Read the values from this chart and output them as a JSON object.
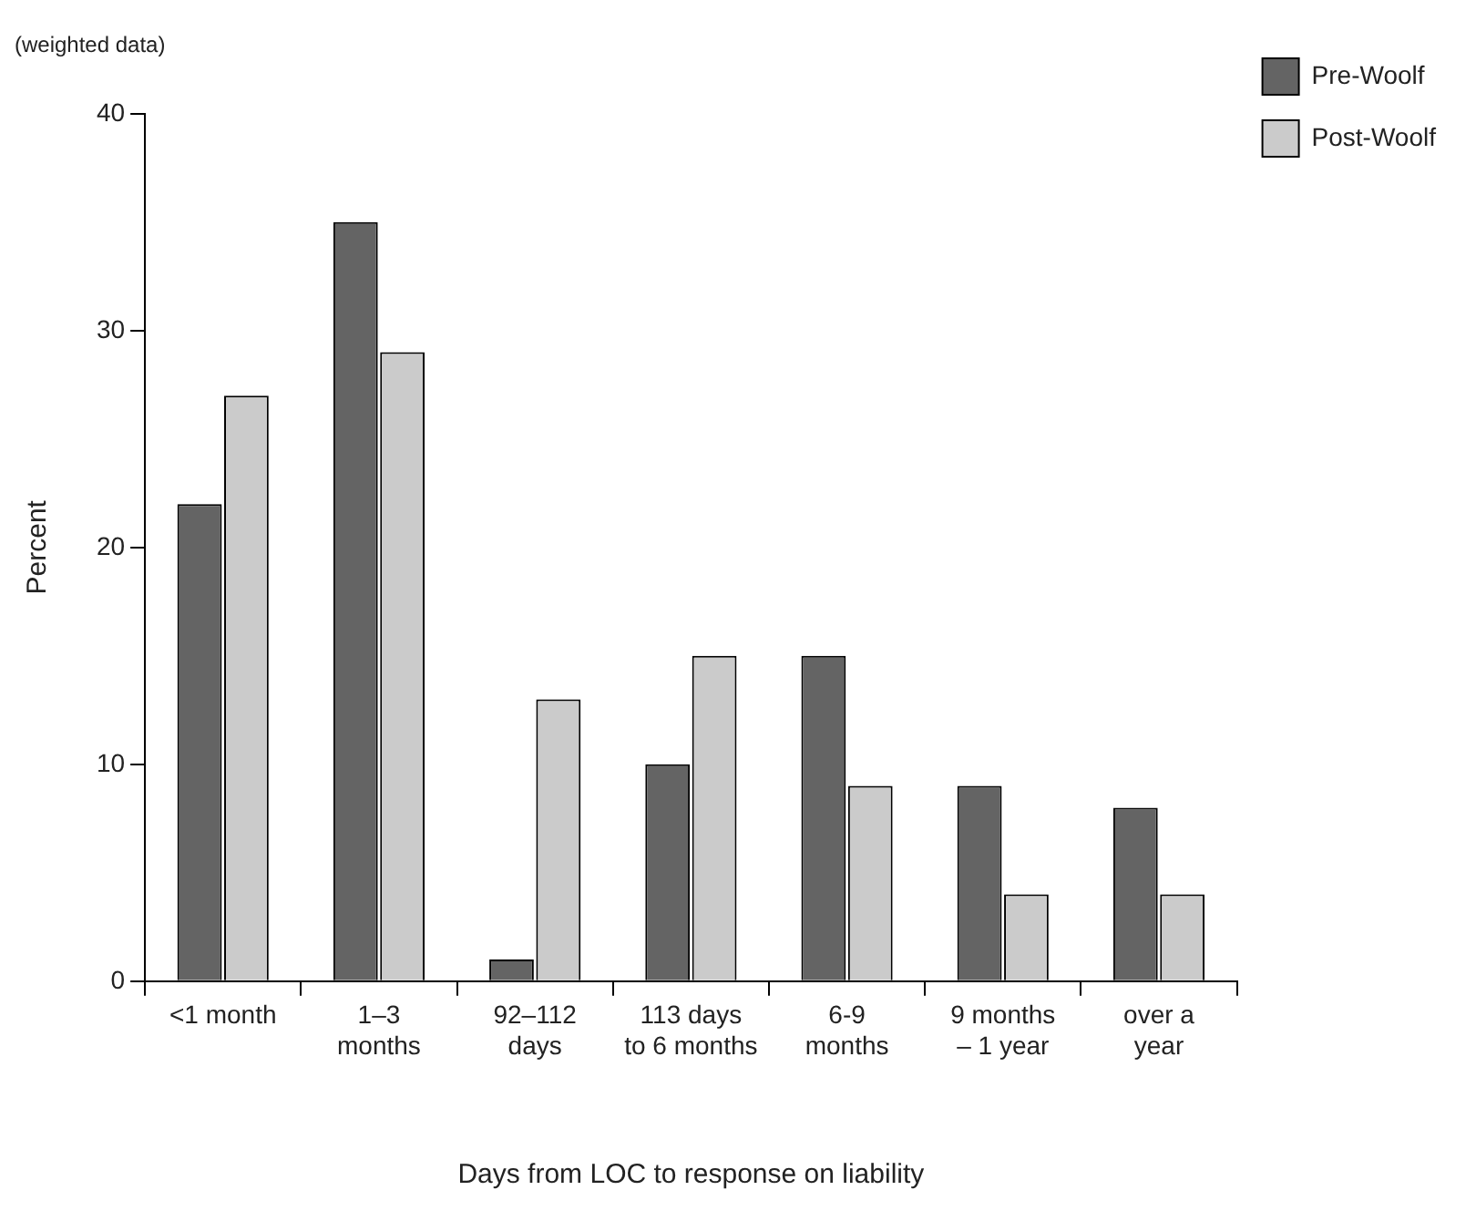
{
  "chart_data": {
    "type": "bar",
    "subtitle": "(weighted data)",
    "ylabel": "Percent",
    "xlabel": "Days from LOC to response on liability",
    "categories": [
      "<1 month",
      "1–3\nmonths",
      "92–112\ndays",
      "113 days\nto 6 months",
      "6-9\nmonths",
      "9 months\n– 1 year",
      "over a\nyear"
    ],
    "series": [
      {
        "name": "Pre-Woolf",
        "color": "#646464",
        "values": [
          22,
          35,
          1,
          10,
          15,
          9,
          8
        ]
      },
      {
        "name": "Post-Woolf",
        "color": "#cbcbcb",
        "values": [
          27,
          29,
          13,
          15,
          9,
          4,
          4
        ]
      }
    ],
    "ylim": [
      0,
      40
    ],
    "yticks": [
      0,
      10,
      20,
      30,
      40
    ],
    "grid": false,
    "legend": "top right"
  }
}
